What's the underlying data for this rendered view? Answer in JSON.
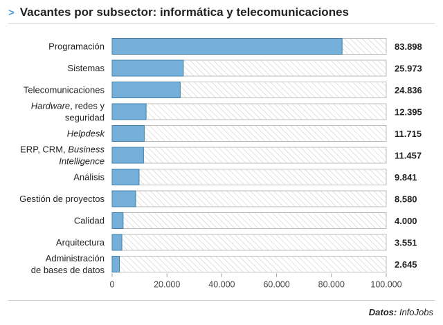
{
  "header": {
    "chevron": ">",
    "title": "Vacantes por subsector: informática y telecomunicaciones"
  },
  "footer": {
    "source_label": "Datos:",
    "source_name": "InfoJobs"
  },
  "colors": {
    "bar": "#74b0d9",
    "bar_stroke": "#3f7faa",
    "track_hatch": "#cfcfcf",
    "track_stroke": "#bdbdbd"
  },
  "chart_data": {
    "type": "bar",
    "orientation": "horizontal",
    "title": "Vacantes por subsector: informática y telecomunicaciones",
    "xlabel": "",
    "ylabel": "",
    "xlim": [
      0,
      100000
    ],
    "ticks": [
      0,
      20000,
      40000,
      60000,
      80000,
      100000
    ],
    "tick_labels": [
      "0",
      "20.000",
      "40.000",
      "60.000",
      "80.000",
      "100.000"
    ],
    "grid": false,
    "categories": [
      [
        {
          "t": "Programación",
          "i": false
        }
      ],
      [
        {
          "t": "Sistemas",
          "i": false
        }
      ],
      [
        {
          "t": "Telecomunicaciones",
          "i": false
        }
      ],
      [
        {
          "t": "Hardware",
          "i": true
        },
        {
          "t": ", redes y",
          "i": false
        }
      ],
      [
        {
          "t": "seguridad",
          "i": false
        }
      ],
      [
        {
          "t": "Helpdesk",
          "i": true
        }
      ],
      [
        {
          "t": "ERP, CRM, ",
          "i": false
        },
        {
          "t": "Business",
          "i": true
        }
      ],
      [
        {
          "t": "Intelligence",
          "i": true
        }
      ],
      [
        {
          "t": "Análisis",
          "i": false
        }
      ],
      [
        {
          "t": "Gestión de proyectos",
          "i": false
        }
      ],
      [
        {
          "t": "Calidad",
          "i": false
        }
      ],
      [
        {
          "t": "Arquitectura",
          "i": false
        }
      ],
      [
        {
          "t": "Administración",
          "i": false
        }
      ],
      [
        {
          "t": "de bases de datos",
          "i": false
        }
      ]
    ],
    "rows": [
      {
        "lines": [
          0
        ],
        "value": 83898,
        "value_label": "83.898"
      },
      {
        "lines": [
          1
        ],
        "value": 25973,
        "value_label": "25.973"
      },
      {
        "lines": [
          2
        ],
        "value": 24836,
        "value_label": "24.836"
      },
      {
        "lines": [
          3,
          4
        ],
        "value": 12395,
        "value_label": "12.395"
      },
      {
        "lines": [
          5
        ],
        "value": 11715,
        "value_label": "11.715"
      },
      {
        "lines": [
          6,
          7
        ],
        "value": 11457,
        "value_label": "11.457"
      },
      {
        "lines": [
          8
        ],
        "value": 9841,
        "value_label": "9.841"
      },
      {
        "lines": [
          9
        ],
        "value": 8580,
        "value_label": "8.580"
      },
      {
        "lines": [
          10
        ],
        "value": 4000,
        "value_label": "4.000"
      },
      {
        "lines": [
          11
        ],
        "value": 3551,
        "value_label": "3.551"
      },
      {
        "lines": [
          12,
          13
        ],
        "value": 2645,
        "value_label": "2.645"
      }
    ]
  }
}
